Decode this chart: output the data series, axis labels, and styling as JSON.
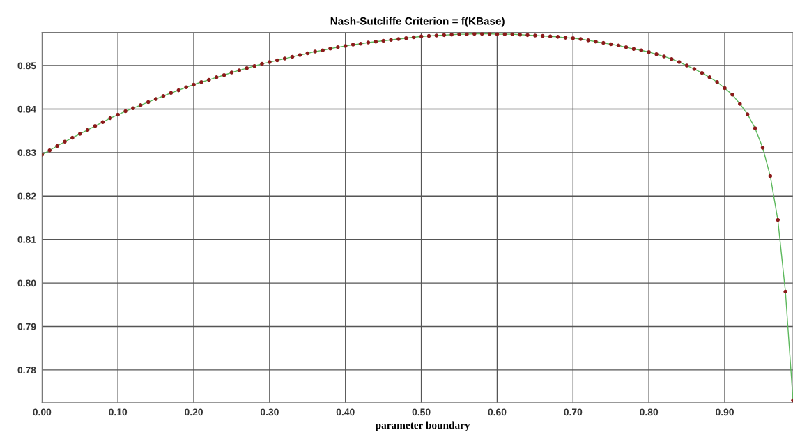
{
  "chart_data": {
    "type": "line",
    "title": "Nash-Sutcliffe Criterion = f(KBase)",
    "xlabel": "parameter boundary",
    "x": [
      0.0,
      0.01,
      0.02,
      0.03,
      0.04,
      0.05,
      0.06,
      0.07,
      0.08,
      0.09,
      0.1,
      0.11,
      0.12,
      0.13,
      0.14,
      0.15,
      0.16,
      0.17,
      0.18,
      0.19,
      0.2,
      0.21,
      0.22,
      0.23,
      0.24,
      0.25,
      0.26,
      0.27,
      0.28,
      0.29,
      0.3,
      0.31,
      0.32,
      0.33,
      0.34,
      0.35,
      0.36,
      0.37,
      0.38,
      0.39,
      0.4,
      0.41,
      0.42,
      0.43,
      0.44,
      0.45,
      0.46,
      0.47,
      0.48,
      0.49,
      0.5,
      0.51,
      0.52,
      0.53,
      0.54,
      0.55,
      0.56,
      0.57,
      0.58,
      0.59,
      0.6,
      0.61,
      0.62,
      0.63,
      0.64,
      0.65,
      0.66,
      0.67,
      0.68,
      0.69,
      0.7,
      0.71,
      0.72,
      0.73,
      0.74,
      0.75,
      0.76,
      0.77,
      0.78,
      0.79,
      0.8,
      0.81,
      0.82,
      0.83,
      0.84,
      0.85,
      0.86,
      0.87,
      0.88,
      0.89,
      0.9,
      0.91,
      0.92,
      0.93,
      0.94,
      0.95,
      0.96,
      0.97,
      0.98,
      0.99
    ],
    "series": [
      {
        "color": "#5cb85c",
        "marker": "none",
        "values": [
          0.8295,
          0.8305,
          0.8315,
          0.8325,
          0.8334,
          0.8343,
          0.8352,
          0.8361,
          0.837,
          0.8379,
          0.8387,
          0.8395,
          0.8402,
          0.8409,
          0.8416,
          0.8423,
          0.843,
          0.8437,
          0.8443,
          0.845,
          0.8456,
          0.8462,
          0.8467,
          0.8473,
          0.8478,
          0.8484,
          0.8489,
          0.8494,
          0.8499,
          0.8504,
          0.8508,
          0.8512,
          0.8516,
          0.852,
          0.8524,
          0.8528,
          0.8532,
          0.8535,
          0.8539,
          0.8542,
          0.8545,
          0.8548,
          0.855,
          0.8553,
          0.8555,
          0.8557,
          0.8559,
          0.8561,
          0.8563,
          0.8565,
          0.8567,
          0.8568,
          0.8569,
          0.857,
          0.8571,
          0.8572,
          0.8572,
          0.8573,
          0.8573,
          0.8573,
          0.8572,
          0.8572,
          0.8572,
          0.8571,
          0.857,
          0.8569,
          0.8568,
          0.8567,
          0.8566,
          0.8564,
          0.8563,
          0.8561,
          0.8558,
          0.8555,
          0.8552,
          0.8549,
          0.8546,
          0.8542,
          0.8538,
          0.8535,
          0.8531,
          0.8526,
          0.8521,
          0.8515,
          0.8508,
          0.85,
          0.8492,
          0.8483,
          0.8473,
          0.8462,
          0.8448,
          0.8433,
          0.8412,
          0.8388,
          0.8356,
          0.8311,
          0.8246,
          0.8145,
          0.798,
          0.773
        ]
      },
      {
        "type": "scatter",
        "color": "#8b1a1a",
        "marker": "circle",
        "values": [
          0.8295,
          0.8305,
          0.8315,
          0.8325,
          0.8334,
          0.8343,
          0.8352,
          0.8361,
          0.837,
          0.8379,
          0.8387,
          0.8395,
          0.8402,
          0.8409,
          0.8416,
          0.8423,
          0.843,
          0.8437,
          0.8443,
          0.845,
          0.8456,
          0.8462,
          0.8467,
          0.8473,
          0.8478,
          0.8484,
          0.8489,
          0.8494,
          0.8499,
          0.8504,
          0.8508,
          0.8512,
          0.8516,
          0.852,
          0.8524,
          0.8528,
          0.8532,
          0.8535,
          0.8539,
          0.8542,
          0.8545,
          0.8548,
          0.855,
          0.8553,
          0.8555,
          0.8557,
          0.8559,
          0.8561,
          0.8563,
          0.8565,
          0.8567,
          0.8568,
          0.8569,
          0.857,
          0.8571,
          0.8572,
          0.8572,
          0.8573,
          0.8573,
          0.8573,
          0.8572,
          0.8572,
          0.8572,
          0.8571,
          0.857,
          0.8569,
          0.8568,
          0.8567,
          0.8566,
          0.8564,
          0.8563,
          0.8561,
          0.8558,
          0.8555,
          0.8552,
          0.8549,
          0.8546,
          0.8542,
          0.8538,
          0.8535,
          0.8531,
          0.8526,
          0.8521,
          0.8515,
          0.8508,
          0.85,
          0.8492,
          0.8483,
          0.8473,
          0.8462,
          0.8448,
          0.8433,
          0.8412,
          0.8388,
          0.8356,
          0.8311,
          0.8246,
          0.8145,
          0.798,
          0.773
        ]
      }
    ],
    "xlim": [
      0.0,
      0.99
    ],
    "ylim": [
      0.7725,
      0.8576
    ],
    "xticks": [
      {
        "value": 0.0,
        "label": "0.00"
      },
      {
        "value": 0.1,
        "label": "0.10"
      },
      {
        "value": 0.2,
        "label": "0.20"
      },
      {
        "value": 0.3,
        "label": "0.30"
      },
      {
        "value": 0.4,
        "label": "0.40"
      },
      {
        "value": 0.5,
        "label": "0.50"
      },
      {
        "value": 0.6,
        "label": "0.60"
      },
      {
        "value": 0.7,
        "label": "0.70"
      },
      {
        "value": 0.8,
        "label": "0.80"
      },
      {
        "value": 0.9,
        "label": "0.90"
      }
    ],
    "yticks": [
      0.78,
      0.79,
      {
        "value": 0.8,
        "label": "0.80"
      },
      0.81,
      0.82,
      0.83,
      0.84,
      0.85
    ],
    "grid": true
  }
}
